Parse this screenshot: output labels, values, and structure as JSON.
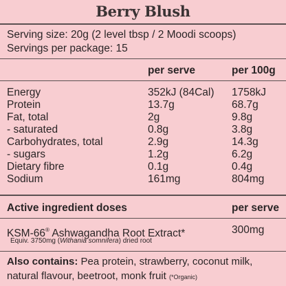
{
  "product": {
    "name": "Berry Blush"
  },
  "serving": {
    "size": "Serving size: 20g (2 level tbsp / 2 Moodi scoops)",
    "per_package": "Servings per package: 15"
  },
  "nutrition": {
    "headers": [
      "",
      "per serve",
      "per 100g"
    ],
    "rows": [
      {
        "name": "Energy",
        "per_serve": "352kJ (84Cal)",
        "per_100g": "1758kJ"
      },
      {
        "name": "Protein",
        "per_serve": "13.7g",
        "per_100g": "68.7g"
      },
      {
        "name": "Fat, total",
        "per_serve": "2g",
        "per_100g": "9.8g"
      },
      {
        "name": "- saturated",
        "per_serve": "0.8g",
        "per_100g": "3.8g"
      },
      {
        "name": "Carbohydrates, total",
        "per_serve": "2.9g",
        "per_100g": "14.3g"
      },
      {
        "name": "- sugars",
        "per_serve": "1.2g",
        "per_100g": "6.2g"
      },
      {
        "name": "Dietary fibre",
        "per_serve": "0.1g",
        "per_100g": "0.4g"
      },
      {
        "name": "Sodium",
        "per_serve": "161mg",
        "per_100g": "804mg"
      }
    ]
  },
  "active": {
    "heading": "Active ingredient doses",
    "column": "per serve",
    "name": "KSM-66",
    "reg_mark": "®",
    "name_rest": " Ashwagandha Root Extract*",
    "value": "300mg",
    "equiv_prefix": "Equiv. 3750mg (",
    "equiv_species": "Withania somnifera",
    "equiv_suffix": ") dried root"
  },
  "also": {
    "label": "Also contains:",
    "text": " Pea protein, strawberry, coconut milk, natural flavour, beetroot, monk fruit ",
    "note": "(*Organic)"
  }
}
